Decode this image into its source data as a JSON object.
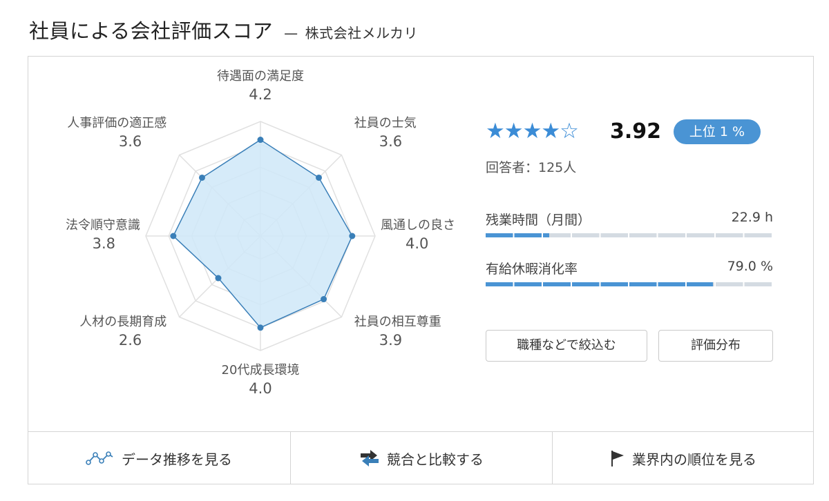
{
  "header": {
    "title": "社員による会社評価スコア",
    "separator": "—",
    "company": "株式会社メルカリ"
  },
  "summary": {
    "stars_text": "★★★★☆",
    "stars_value": 3.92,
    "score": "3.92",
    "rank_badge": "上位 1 %",
    "respondents": "回答者：125人"
  },
  "metrics": [
    {
      "label": "残業時間（月間）",
      "value": "22.9 h",
      "fill_fraction": 0.22
    },
    {
      "label": "有給休暇消化率",
      "value": "79.0 %",
      "fill_fraction": 0.79
    }
  ],
  "buttons": {
    "filter": "職種などで絞込む",
    "distribution": "評価分布"
  },
  "footer": {
    "trend": "データ推移を見る",
    "compare": "競合と比較する",
    "ranking": "業界内の順位を見る"
  },
  "colors": {
    "accent": "#4a94d4",
    "radar_stroke": "#3a7fb8",
    "radar_fill": "#cfe8f8",
    "grid": "#e0e0e0"
  },
  "chart_data": {
    "type": "radar",
    "min": 0,
    "max": 5,
    "categories": [
      "待遇面の満足度",
      "社員の士気",
      "風通しの良さ",
      "社員の相互尊重",
      "20代成長環境",
      "人材の長期育成",
      "法令順守意識",
      "人事評価の適正感"
    ],
    "values": [
      4.2,
      3.6,
      4.0,
      3.9,
      4.0,
      2.6,
      3.8,
      3.6
    ],
    "value_labels": [
      "4.2",
      "3.6",
      "4.0",
      "3.9",
      "4.0",
      "2.6",
      "3.8",
      "3.6"
    ],
    "grid_levels": 5
  }
}
